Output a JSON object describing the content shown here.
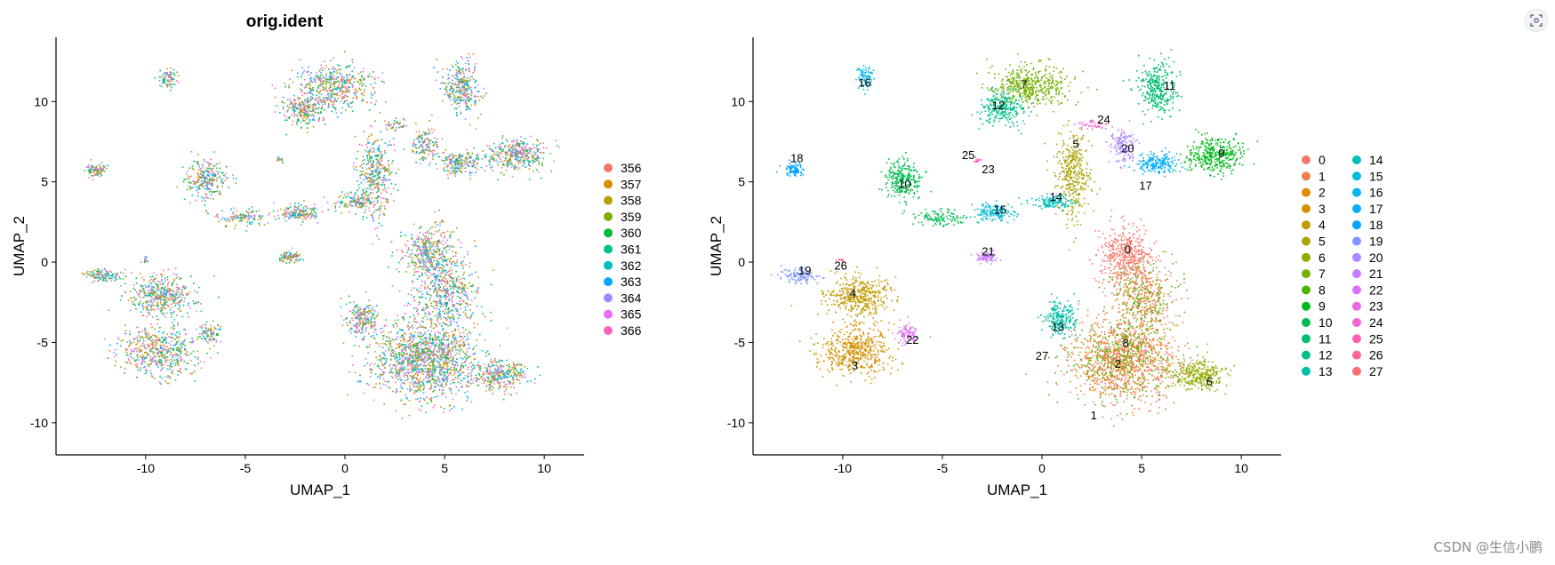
{
  "chart_data": [
    {
      "type": "scatter",
      "title": "orig.ident",
      "xlabel": "UMAP_1",
      "ylabel": "UMAP_2",
      "xlim": [
        -14.5,
        12
      ],
      "ylim": [
        -12,
        14
      ],
      "xticks": [
        -10,
        -5,
        0,
        5,
        10
      ],
      "yticks": [
        -10,
        -5,
        0,
        5,
        10
      ],
      "grid": false,
      "legend_position": "right",
      "legend": [
        {
          "label": "356",
          "color": "#F8766D"
        },
        {
          "label": "357",
          "color": "#DE8C00"
        },
        {
          "label": "358",
          "color": "#B79F00"
        },
        {
          "label": "359",
          "color": "#7CAE00"
        },
        {
          "label": "360",
          "color": "#00BA38"
        },
        {
          "label": "361",
          "color": "#00C08B"
        },
        {
          "label": "362",
          "color": "#00BFC4"
        },
        {
          "label": "363",
          "color": "#00A9FF"
        },
        {
          "label": "364",
          "color": "#9590FF"
        },
        {
          "label": "365",
          "color": "#E76BF3"
        },
        {
          "label": "366",
          "color": "#FF62BC"
        }
      ]
    },
    {
      "type": "scatter",
      "title": "",
      "xlabel": "UMAP_1",
      "ylabel": "UMAP_2",
      "xlim": [
        -14.5,
        12
      ],
      "ylim": [
        -12,
        14
      ],
      "xticks": [
        -10,
        -5,
        0,
        5,
        10
      ],
      "yticks": [
        -10,
        -5,
        0,
        5,
        10
      ],
      "grid": false,
      "legend_position": "right",
      "legend": [
        {
          "label": "0",
          "color": "#F8766D"
        },
        {
          "label": "1",
          "color": "#F07F4B"
        },
        {
          "label": "2",
          "color": "#E38900"
        },
        {
          "label": "3",
          "color": "#D39200"
        },
        {
          "label": "4",
          "color": "#C19A00"
        },
        {
          "label": "5",
          "color": "#ABA300"
        },
        {
          "label": "6",
          "color": "#93AA00"
        },
        {
          "label": "7",
          "color": "#75B000"
        },
        {
          "label": "8",
          "color": "#4BB500"
        },
        {
          "label": "9",
          "color": "#00B91B"
        },
        {
          "label": "10",
          "color": "#00BC4F"
        },
        {
          "label": "11",
          "color": "#00BE70"
        },
        {
          "label": "12",
          "color": "#00C08D"
        },
        {
          "label": "13",
          "color": "#00C0A7"
        },
        {
          "label": "14",
          "color": "#00BFBF"
        },
        {
          "label": "15",
          "color": "#00BCD6"
        },
        {
          "label": "16",
          "color": "#00B7EA"
        },
        {
          "label": "17",
          "color": "#00AFFC"
        },
        {
          "label": "18",
          "color": "#00A5FF"
        },
        {
          "label": "19",
          "color": "#7D96FF"
        },
        {
          "label": "20",
          "color": "#AA88FF"
        },
        {
          "label": "21",
          "color": "#C97BFF"
        },
        {
          "label": "22",
          "color": "#E06FF8"
        },
        {
          "label": "23",
          "color": "#EE67E7"
        },
        {
          "label": "24",
          "color": "#F763D1"
        },
        {
          "label": "25",
          "color": "#FC63B7"
        },
        {
          "label": "26",
          "color": "#FE6898"
        },
        {
          "label": "27",
          "color": "#F96F74"
        }
      ],
      "cluster_labels": [
        {
          "label": "0",
          "x": 4.3,
          "y": 0.8
        },
        {
          "label": "1",
          "x": 2.6,
          "y": -9.5
        },
        {
          "label": "2",
          "x": 3.8,
          "y": -6.3
        },
        {
          "label": "3",
          "x": -9.4,
          "y": -6.4
        },
        {
          "label": "4",
          "x": -9.5,
          "y": -1.9
        },
        {
          "label": "5",
          "x": 1.7,
          "y": 7.4
        },
        {
          "label": "6",
          "x": 8.4,
          "y": -7.4
        },
        {
          "label": "7",
          "x": -0.9,
          "y": 11.1
        },
        {
          "label": "8",
          "x": 4.2,
          "y": -5.0
        },
        {
          "label": "9",
          "x": 9.0,
          "y": 6.8
        },
        {
          "label": "10",
          "x": -6.9,
          "y": 4.9
        },
        {
          "label": "11",
          "x": 6.4,
          "y": 11.0
        },
        {
          "label": "12",
          "x": -2.2,
          "y": 9.8
        },
        {
          "label": "13",
          "x": 0.8,
          "y": -4.0
        },
        {
          "label": "14",
          "x": 0.7,
          "y": 4.1
        },
        {
          "label": "15",
          "x": -2.1,
          "y": 3.3
        },
        {
          "label": "16",
          "x": -8.9,
          "y": 11.2
        },
        {
          "label": "17",
          "x": 5.2,
          "y": 4.8
        },
        {
          "label": "18",
          "x": -12.3,
          "y": 6.5
        },
        {
          "label": "19",
          "x": -11.9,
          "y": -0.5
        },
        {
          "label": "20",
          "x": 4.3,
          "y": 7.1
        },
        {
          "label": "21",
          "x": -2.7,
          "y": 0.7
        },
        {
          "label": "22",
          "x": -6.5,
          "y": -4.8
        },
        {
          "label": "23",
          "x": -2.7,
          "y": 5.8
        },
        {
          "label": "24",
          "x": 3.1,
          "y": 8.9
        },
        {
          "label": "25",
          "x": -3.7,
          "y": 6.7
        },
        {
          "label": "26",
          "x": -10.1,
          "y": -0.2
        },
        {
          "label": "27",
          "x": 0.0,
          "y": -5.8
        }
      ]
    }
  ],
  "ui": {
    "watermark": "CSDN @生信小鹏",
    "corner_icon": "scan-icon"
  }
}
